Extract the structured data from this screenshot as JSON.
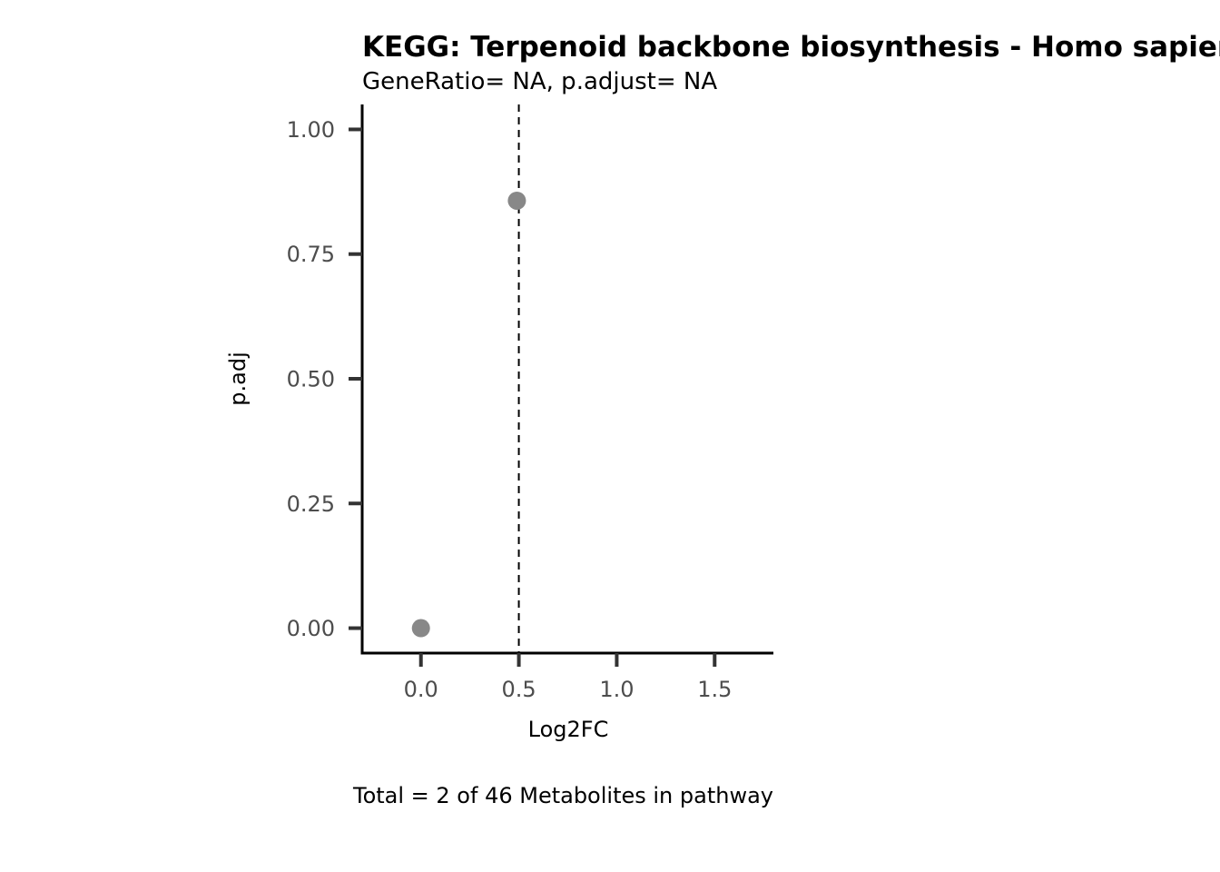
{
  "chart_data": {
    "type": "scatter",
    "title": "KEGG: Terpenoid backbone biosynthesis - Homo sapiens (human)",
    "subtitle": "GeneRatio= NA, p.adjust= NA",
    "xlabel": "Log2FC",
    "ylabel": "p.adj",
    "caption": "Total = 2 of 46 Metabolites in pathway",
    "xlim": [
      -0.3,
      1.8
    ],
    "ylim": [
      -0.05,
      1.05
    ],
    "x_ticks": [
      0.0,
      0.5,
      1.0,
      1.5
    ],
    "x_tick_labels": [
      "0.0",
      "0.5",
      "1.0",
      "1.5"
    ],
    "y_ticks": [
      0.0,
      0.25,
      0.5,
      0.75,
      1.0
    ],
    "y_tick_labels": [
      "0.00",
      "0.25",
      "0.50",
      "0.75",
      "1.00"
    ],
    "vline": 0.5,
    "grid": false,
    "point_color": "#888888",
    "points": [
      {
        "x": 0.0,
        "y": 0.0
      },
      {
        "x": 0.49,
        "y": 0.857
      }
    ]
  }
}
